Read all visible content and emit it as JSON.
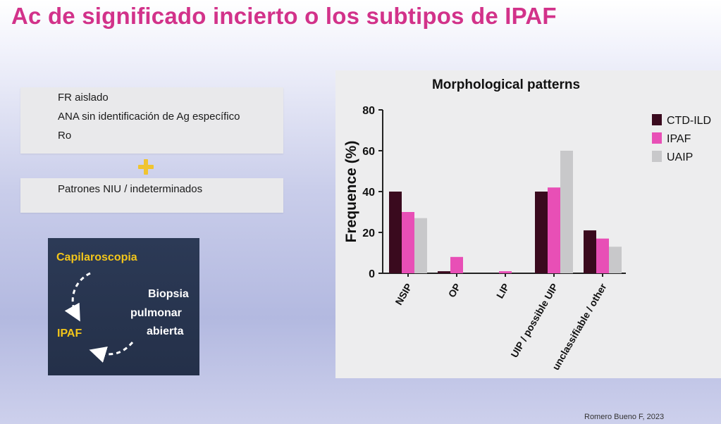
{
  "slide": {
    "title": "Ac de significado incierto o los subtipos de IPAF",
    "credit": "Romero Bueno F, 2023"
  },
  "criteria_box": {
    "lines": [
      "FR aislado",
      "ANA sin identificación de Ag específico",
      "Ro"
    ]
  },
  "pattern_box": {
    "line": "Patrones NIU / indeterminados"
  },
  "flow": {
    "capilaroscopia": "Capilaroscopia",
    "biopsia_1": "Biopsia",
    "biopsia_2": "pulmonar",
    "biopsia_3": "abierta",
    "ipaf": "IPAF"
  },
  "colors": {
    "title": "#d2328a",
    "ctd_ild": "#3a0a1e",
    "ipaf": "#e84fb6",
    "uaip": "#c8c8ca",
    "plus": "#f0c430"
  },
  "chart_data": {
    "type": "bar",
    "title": "Morphological patterns",
    "ylabel": "Frequence (%)",
    "xlabel": "",
    "categories": [
      "NSIP",
      "OP",
      "LIP",
      "UIP / possible UIP",
      "unclassifiable / other"
    ],
    "series": [
      {
        "name": "CTD-ILD",
        "values": [
          40,
          1,
          0,
          40,
          21
        ]
      },
      {
        "name": "IPAF",
        "values": [
          30,
          8,
          1,
          42,
          17
        ]
      },
      {
        "name": "UAIP",
        "values": [
          27,
          0,
          0,
          60,
          13
        ]
      }
    ],
    "ylim": [
      0,
      80
    ],
    "yticks": [
      "0",
      "20",
      "40",
      "60",
      "80"
    ],
    "legend_position": "right",
    "grid": false
  }
}
